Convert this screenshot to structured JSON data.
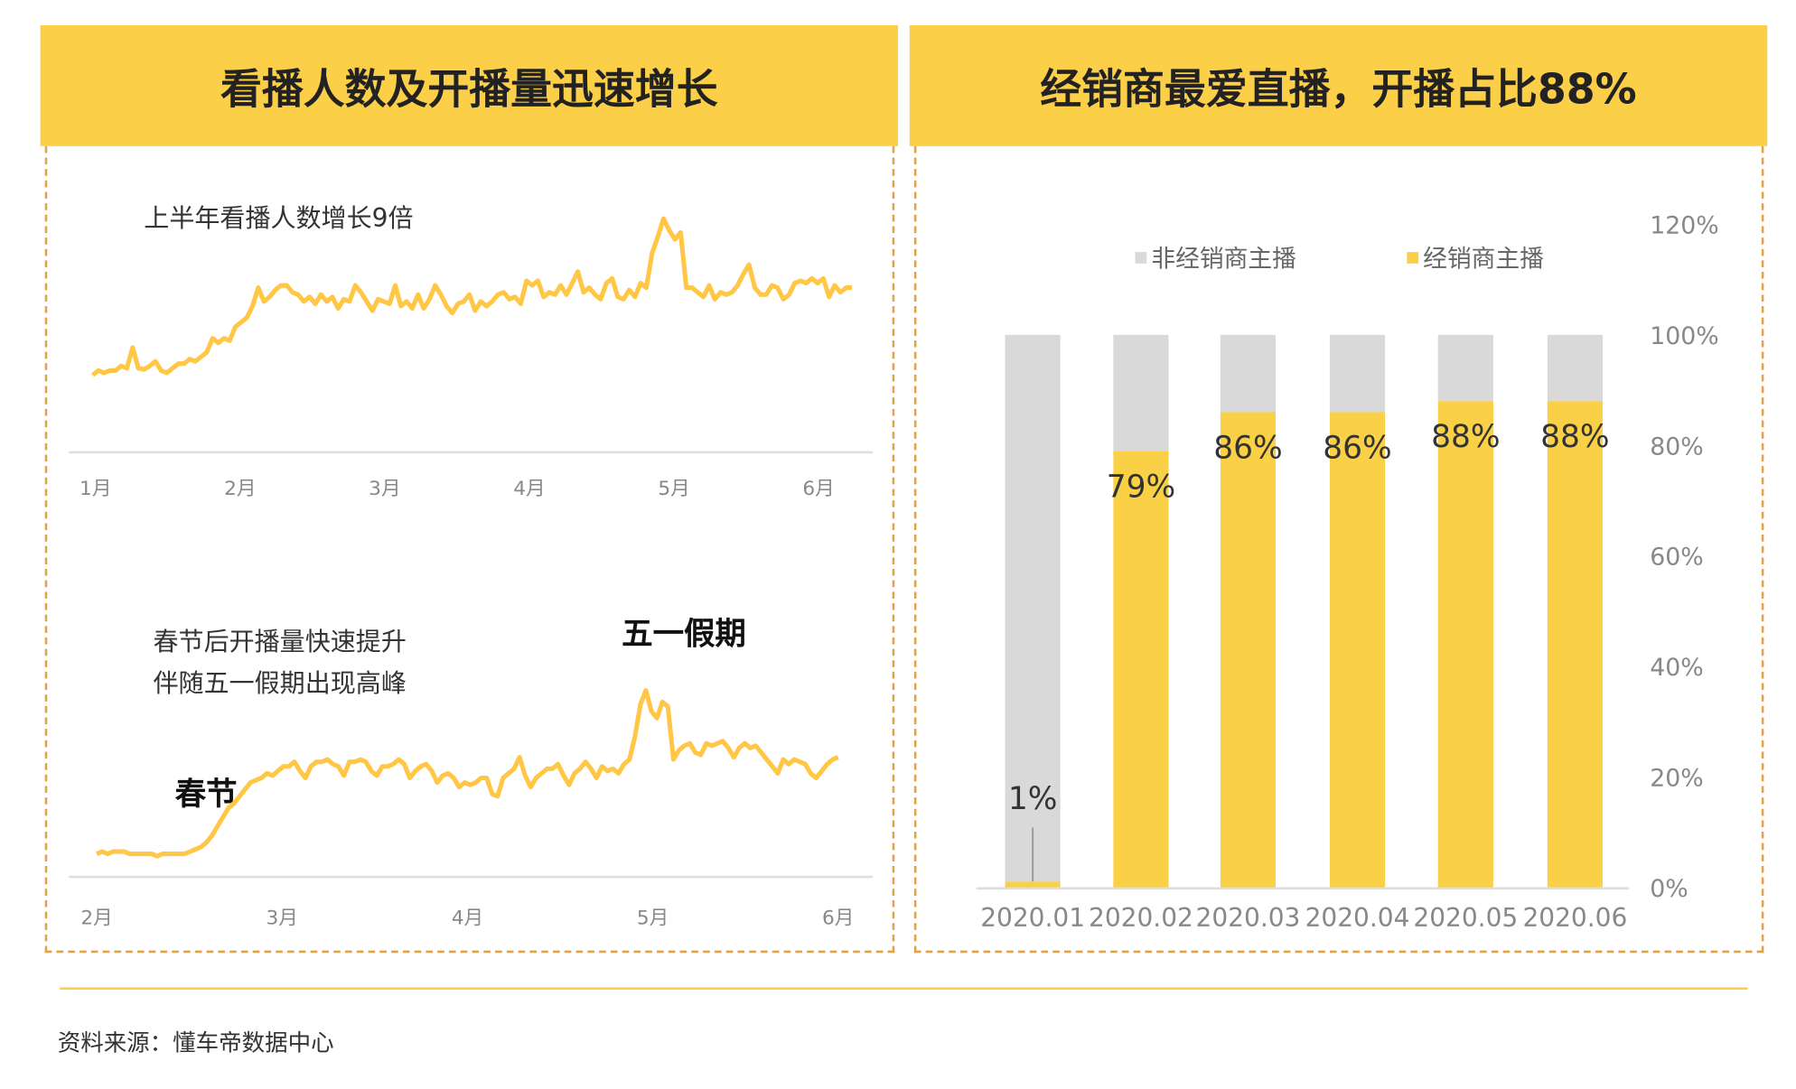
{
  "left_panel": {
    "title": "看播人数及开播量迅速增长"
  },
  "right_panel": {
    "title": "经销商最爱直播，开播占比88%"
  },
  "colors": {
    "header": "#FCCF48",
    "line": "#FFC745",
    "dealer": "#FAD046",
    "non_dealer": "#D9D9D9",
    "dashed_border": "#E2A24A"
  },
  "footer": {
    "source": "资料来源：懂车帝数据中心"
  },
  "chart_data": [
    {
      "type": "line",
      "title": "上半年看播人数增长9倍",
      "x_ticks": [
        "1月",
        "2月",
        "3月",
        "4月",
        "5月",
        "6月"
      ],
      "x_tick_values": [
        1,
        2,
        3,
        4,
        5,
        6
      ],
      "x_range": [
        0.98,
        6.23
      ],
      "y_axis_shown": false,
      "grid": false,
      "values": [
        67,
        71,
        69,
        71,
        71,
        75,
        73,
        91,
        73,
        72,
        75,
        79,
        71,
        69,
        73,
        77,
        77,
        81,
        79,
        83,
        87,
        99,
        95,
        99,
        97,
        109,
        113,
        117,
        127,
        143,
        131,
        135,
        141,
        145,
        145,
        139,
        137,
        131,
        135,
        129,
        137,
        131,
        135,
        125,
        133,
        131,
        145,
        139,
        131,
        123,
        133,
        131,
        129,
        145,
        127,
        131,
        125,
        137,
        125,
        133,
        145,
        137,
        127,
        121,
        129,
        131,
        137,
        123,
        131,
        127,
        131,
        137,
        139,
        133,
        135,
        129,
        149,
        145,
        149,
        135,
        139,
        137,
        145,
        137,
        147,
        157,
        139,
        143,
        137,
        133,
        147,
        151,
        135,
        133,
        141,
        135,
        147,
        143,
        173,
        187,
        203,
        193,
        185,
        191,
        143,
        143,
        139,
        135,
        145,
        133,
        139,
        137,
        139,
        145,
        155,
        163,
        143,
        137,
        137,
        145,
        143,
        133,
        137,
        147,
        149,
        147,
        151,
        147,
        151,
        135,
        145,
        139,
        143,
        143
      ]
    },
    {
      "type": "line",
      "title": "春节后开播量快速提升\n伴随五一假期出现高峰",
      "subtitle_lines": [
        "春节后开播量快速提升",
        "伴随五一假期出现高峰"
      ],
      "annotations": [
        "春节",
        "五一假期"
      ],
      "x_ticks": [
        "2月",
        "3月",
        "4月",
        "5月",
        "6月"
      ],
      "x_tick_values": [
        2,
        3,
        4,
        5,
        6
      ],
      "x_range": [
        2.0,
        6.0
      ],
      "y_axis_shown": false,
      "grid": false,
      "values": [
        20,
        22,
        20,
        22,
        22,
        22,
        20,
        20,
        20,
        20,
        20,
        18,
        20,
        20,
        20,
        20,
        20,
        22,
        24,
        26,
        30,
        36,
        44,
        52,
        60,
        64,
        70,
        76,
        82,
        84,
        86,
        90,
        88,
        92,
        96,
        96,
        100,
        92,
        86,
        96,
        100,
        100,
        102,
        98,
        96,
        88,
        100,
        100,
        102,
        100,
        92,
        88,
        96,
        96,
        98,
        102,
        98,
        86,
        92,
        96,
        98,
        92,
        82,
        88,
        90,
        86,
        78,
        82,
        80,
        82,
        86,
        86,
        72,
        70,
        86,
        90,
        94,
        104,
        88,
        78,
        86,
        90,
        94,
        94,
        98,
        88,
        80,
        90,
        94,
        100,
        94,
        86,
        96,
        92,
        94,
        90,
        98,
        102,
        122,
        150,
        162,
        144,
        138,
        152,
        148,
        102,
        110,
        114,
        116,
        108,
        106,
        116,
        114,
        116,
        118,
        112,
        104,
        112,
        116,
        112,
        114,
        108,
        102,
        96,
        90,
        102,
        98,
        102,
        100,
        98,
        90,
        86,
        92,
        98,
        102,
        104
      ]
    },
    {
      "type": "bar",
      "stacked": true,
      "categories": [
        "2020.01",
        "2020.02",
        "2020.03",
        "2020.04",
        "2020.05",
        "2020.06"
      ],
      "series": [
        {
          "name": "经销商主播",
          "values": [
            1,
            79,
            86,
            86,
            88,
            88
          ]
        },
        {
          "name": "非经销商主播",
          "values": [
            99,
            21,
            14,
            14,
            12,
            12
          ]
        }
      ],
      "legend": [
        "非经销商主播",
        "经销商主播"
      ],
      "legend_position": "top",
      "data_labels": [
        "1%",
        "79%",
        "86%",
        "86%",
        "88%",
        "88%"
      ],
      "y_ticks": [
        "0%",
        "20%",
        "40%",
        "60%",
        "80%",
        "100%",
        "120%"
      ],
      "ylim": [
        0,
        120
      ],
      "y_axis_position": "right",
      "grid": false
    }
  ]
}
